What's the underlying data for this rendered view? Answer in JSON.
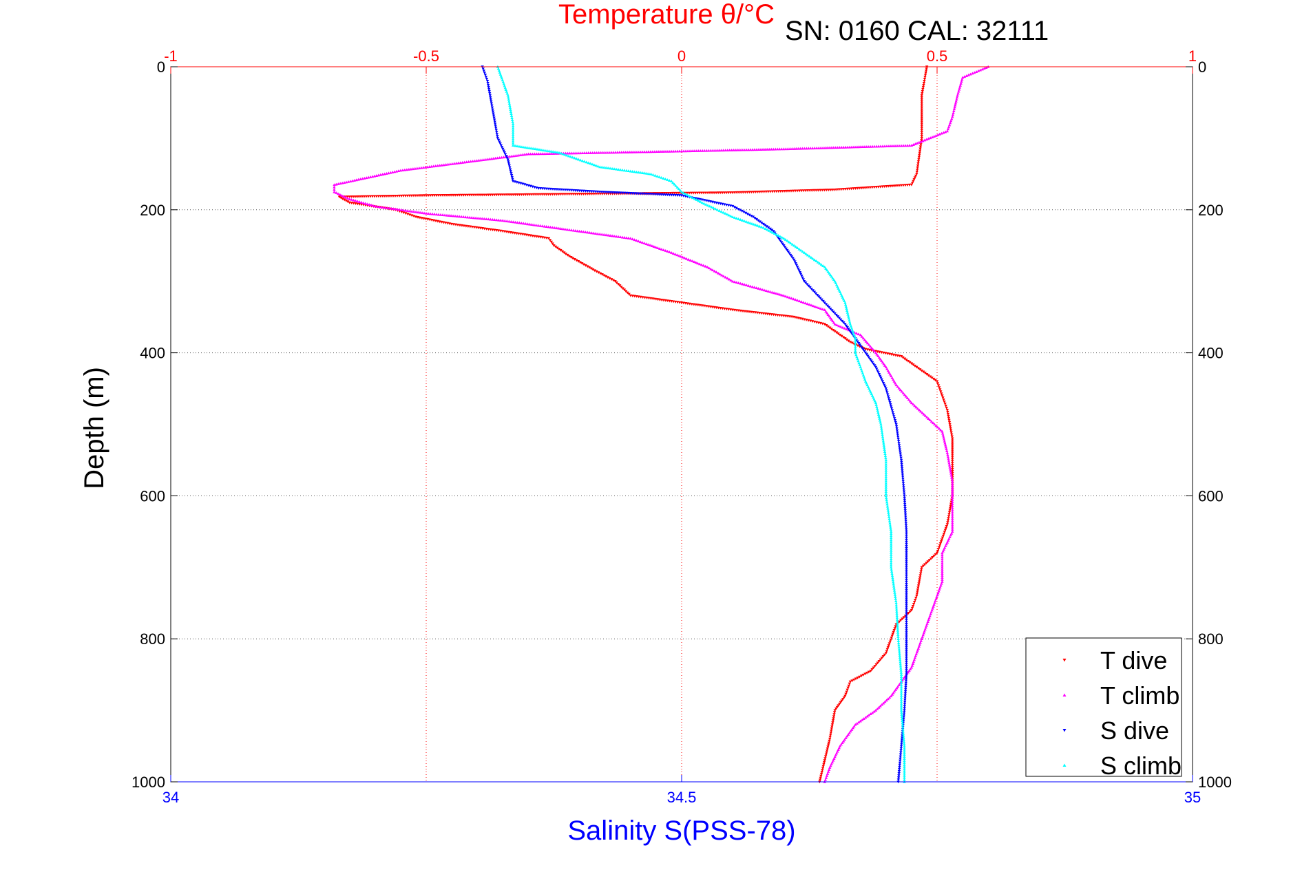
{
  "chart_data": {
    "type": "scatter",
    "title": "Temperature θ/°C",
    "subtitle": "SN: 0160  CAL: 32111",
    "xlabel": "Salinity S(PSS-78)",
    "ylabel": "Depth (m)",
    "x_bottom": {
      "range": [
        34,
        35
      ],
      "ticks": [
        "34",
        "34.5",
        "35"
      ],
      "tick_values": [
        34,
        34.5,
        35
      ],
      "color": "#0000ff"
    },
    "x_top": {
      "range": [
        -1,
        1
      ],
      "ticks": [
        "-1",
        "-0.5",
        "0",
        "0.5",
        "1"
      ],
      "tick_values": [
        -1,
        -0.5,
        0,
        0.5,
        1
      ],
      "color": "#ff0000"
    },
    "y": {
      "range": [
        0,
        1000
      ],
      "reversed": true,
      "ticks": [
        "0",
        "200",
        "400",
        "600",
        "800",
        "1000"
      ],
      "tick_values": [
        0,
        200,
        400,
        600,
        800,
        1000
      ]
    },
    "grid": true,
    "legend_position": "bottom-right",
    "series": [
      {
        "name": "T dive",
        "axis": "top",
        "color": "#ff0000",
        "marker": "triangle-down",
        "points": [
          [
            0.48,
            0
          ],
          [
            0.47,
            40
          ],
          [
            0.47,
            100
          ],
          [
            0.46,
            150
          ],
          [
            0.45,
            165
          ],
          [
            0.3,
            172
          ],
          [
            0.1,
            176
          ],
          [
            -0.2,
            178
          ],
          [
            -0.5,
            180
          ],
          [
            -0.67,
            182
          ],
          [
            -0.65,
            190
          ],
          [
            -0.56,
            200
          ],
          [
            -0.52,
            210
          ],
          [
            -0.45,
            220
          ],
          [
            -0.35,
            230
          ],
          [
            -0.26,
            240
          ],
          [
            -0.25,
            250
          ],
          [
            -0.22,
            265
          ],
          [
            -0.17,
            285
          ],
          [
            -0.13,
            300
          ],
          [
            -0.1,
            320
          ],
          [
            0.0,
            330
          ],
          [
            0.1,
            340
          ],
          [
            0.22,
            350
          ],
          [
            0.28,
            360
          ],
          [
            0.3,
            370
          ],
          [
            0.33,
            385
          ],
          [
            0.36,
            395
          ],
          [
            0.43,
            405
          ],
          [
            0.46,
            420
          ],
          [
            0.5,
            440
          ],
          [
            0.51,
            460
          ],
          [
            0.52,
            480
          ],
          [
            0.53,
            520
          ],
          [
            0.53,
            560
          ],
          [
            0.53,
            600
          ],
          [
            0.52,
            640
          ],
          [
            0.5,
            680
          ],
          [
            0.47,
            700
          ],
          [
            0.46,
            740
          ],
          [
            0.45,
            760
          ],
          [
            0.42,
            780
          ],
          [
            0.4,
            820
          ],
          [
            0.37,
            845
          ],
          [
            0.33,
            860
          ],
          [
            0.32,
            880
          ],
          [
            0.3,
            900
          ],
          [
            0.29,
            940
          ],
          [
            0.28,
            970
          ],
          [
            0.27,
            1000
          ]
        ]
      },
      {
        "name": "T climb",
        "axis": "top",
        "color": "#ff00ff",
        "marker": "triangle-up",
        "points": [
          [
            0.6,
            0
          ],
          [
            0.55,
            15
          ],
          [
            0.54,
            40
          ],
          [
            0.53,
            70
          ],
          [
            0.52,
            90
          ],
          [
            0.45,
            110
          ],
          [
            0.2,
            115
          ],
          [
            0.0,
            118
          ],
          [
            -0.3,
            122
          ],
          [
            -0.55,
            145
          ],
          [
            -0.68,
            165
          ],
          [
            -0.68,
            175
          ],
          [
            -0.65,
            185
          ],
          [
            -0.6,
            195
          ],
          [
            -0.5,
            205
          ],
          [
            -0.35,
            215
          ],
          [
            -0.22,
            228
          ],
          [
            -0.1,
            240
          ],
          [
            -0.02,
            260
          ],
          [
            0.05,
            280
          ],
          [
            0.1,
            300
          ],
          [
            0.2,
            320
          ],
          [
            0.28,
            340
          ],
          [
            0.3,
            360
          ],
          [
            0.35,
            375
          ],
          [
            0.38,
            400
          ],
          [
            0.4,
            420
          ],
          [
            0.42,
            445
          ],
          [
            0.45,
            470
          ],
          [
            0.48,
            490
          ],
          [
            0.51,
            510
          ],
          [
            0.52,
            540
          ],
          [
            0.53,
            580
          ],
          [
            0.53,
            620
          ],
          [
            0.53,
            650
          ],
          [
            0.51,
            680
          ],
          [
            0.51,
            720
          ],
          [
            0.49,
            760
          ],
          [
            0.47,
            800
          ],
          [
            0.45,
            840
          ],
          [
            0.43,
            860
          ],
          [
            0.41,
            880
          ],
          [
            0.38,
            900
          ],
          [
            0.34,
            920
          ],
          [
            0.31,
            950
          ],
          [
            0.29,
            980
          ],
          [
            0.28,
            1000
          ]
        ]
      },
      {
        "name": "S dive",
        "axis": "bottom",
        "color": "#0000ff",
        "marker": "triangle-down",
        "points": [
          [
            34.305,
            0
          ],
          [
            34.31,
            20
          ],
          [
            34.315,
            60
          ],
          [
            34.32,
            100
          ],
          [
            34.33,
            130
          ],
          [
            34.335,
            160
          ],
          [
            34.36,
            170
          ],
          [
            34.42,
            175
          ],
          [
            34.5,
            180
          ],
          [
            34.55,
            195
          ],
          [
            34.57,
            210
          ],
          [
            34.59,
            230
          ],
          [
            34.6,
            250
          ],
          [
            34.61,
            270
          ],
          [
            34.62,
            300
          ],
          [
            34.64,
            330
          ],
          [
            34.66,
            360
          ],
          [
            34.67,
            380
          ],
          [
            34.68,
            400
          ],
          [
            34.69,
            420
          ],
          [
            34.7,
            450
          ],
          [
            34.71,
            500
          ],
          [
            34.715,
            550
          ],
          [
            34.718,
            600
          ],
          [
            34.72,
            650
          ],
          [
            34.72,
            700
          ],
          [
            34.72,
            750
          ],
          [
            34.72,
            800
          ],
          [
            34.72,
            850
          ],
          [
            34.718,
            900
          ],
          [
            34.715,
            950
          ],
          [
            34.712,
            1000
          ]
        ]
      },
      {
        "name": "S climb",
        "axis": "bottom",
        "color": "#00ffff",
        "marker": "triangle-up",
        "points": [
          [
            34.32,
            0
          ],
          [
            34.33,
            40
          ],
          [
            34.335,
            80
          ],
          [
            34.335,
            110
          ],
          [
            34.38,
            120
          ],
          [
            34.42,
            140
          ],
          [
            34.47,
            150
          ],
          [
            34.49,
            160
          ],
          [
            34.5,
            175
          ],
          [
            34.52,
            190
          ],
          [
            34.55,
            210
          ],
          [
            34.58,
            225
          ],
          [
            34.6,
            240
          ],
          [
            34.62,
            260
          ],
          [
            34.64,
            280
          ],
          [
            34.65,
            300
          ],
          [
            34.66,
            330
          ],
          [
            34.665,
            360
          ],
          [
            34.67,
            380
          ],
          [
            34.67,
            400
          ],
          [
            34.675,
            420
          ],
          [
            34.68,
            440
          ],
          [
            34.69,
            470
          ],
          [
            34.695,
            500
          ],
          [
            34.7,
            550
          ],
          [
            34.7,
            600
          ],
          [
            34.705,
            650
          ],
          [
            34.705,
            700
          ],
          [
            34.71,
            750
          ],
          [
            34.712,
            800
          ],
          [
            34.715,
            850
          ],
          [
            34.715,
            900
          ],
          [
            34.718,
            950
          ],
          [
            34.718,
            1000
          ]
        ]
      }
    ]
  }
}
